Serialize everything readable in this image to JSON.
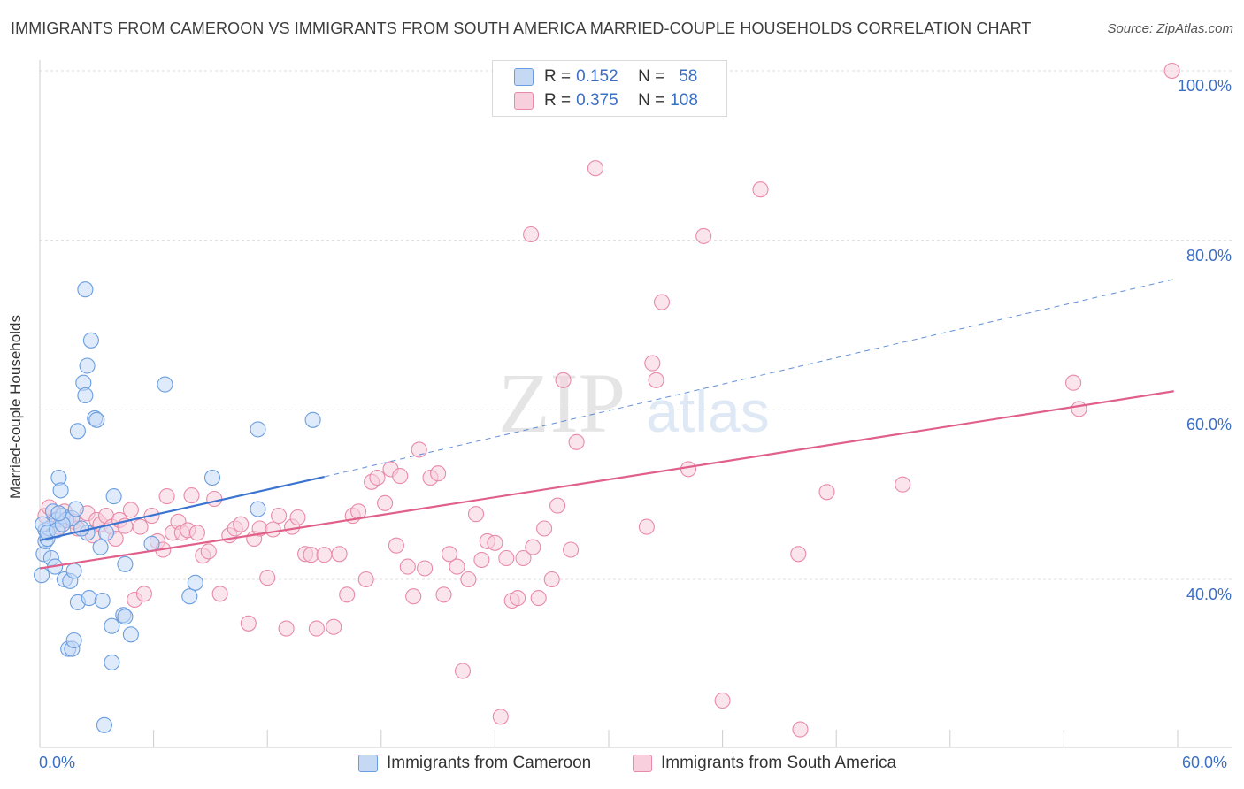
{
  "header": {
    "title": "IMMIGRANTS FROM CAMEROON VS IMMIGRANTS FROM SOUTH AMERICA MARRIED-COUPLE HOUSEHOLDS CORRELATION CHART",
    "source": "Source: ZipAtlas.com"
  },
  "watermark": {
    "zip": "ZIP",
    "atlas": "atlas"
  },
  "legend": {
    "r_label": "R =",
    "n_label": "N =",
    "rows": [
      {
        "r": "0.152",
        "n": "58"
      },
      {
        "r": "0.375",
        "n": "108"
      }
    ]
  },
  "colors": {
    "series1_fill": "#c5d9f5",
    "series1_stroke": "#6a9ee0",
    "series1_line": "#3b74d0",
    "series2_fill": "#f8cfdc",
    "series2_stroke": "#e88aa8",
    "series2_line": "#e0608a",
    "tick_label": "#3b6fc4",
    "grid": "#dddddd"
  },
  "chart_data": {
    "type": "scatter",
    "title": "IMMIGRANTS FROM CAMEROON VS IMMIGRANTS FROM SOUTH AMERICA MARRIED-COUPLE HOUSEHOLDS CORRELATION CHART",
    "xlabel": "",
    "ylabel": "Married-couple Households",
    "xlim": [
      0,
      60
    ],
    "ylim": [
      20,
      102
    ],
    "x_tick_labels": [
      "0.0%",
      "60.0%"
    ],
    "y_ticks": [
      40,
      60,
      80,
      100
    ],
    "y_tick_labels": [
      "40.0%",
      "60.0%",
      "80.0%",
      "100.0%"
    ],
    "grid": "horizontal dashed",
    "legend_position": "top-center",
    "series": [
      {
        "name": "Immigrants from Cameroon",
        "r": 0.152,
        "n": 58,
        "trend": {
          "x": [
            0,
            15.0
          ],
          "y": [
            44.6,
            52.1
          ],
          "dashed_extension": {
            "x": [
              15.0,
              59.8
            ],
            "y": [
              52.1,
              75.4
            ]
          }
        },
        "points": [
          [
            0.1,
            40.5
          ],
          [
            0.2,
            43.0
          ],
          [
            0.3,
            44.5
          ],
          [
            0.3,
            45.8
          ],
          [
            0.4,
            44.8
          ],
          [
            0.5,
            46.0
          ],
          [
            0.6,
            42.5
          ],
          [
            0.7,
            48.0
          ],
          [
            0.8,
            41.5
          ],
          [
            0.9,
            47.0
          ],
          [
            1.0,
            52.0
          ],
          [
            1.1,
            50.5
          ],
          [
            1.2,
            47.5
          ],
          [
            1.3,
            40.0
          ],
          [
            1.4,
            47.0
          ],
          [
            1.5,
            31.8
          ],
          [
            1.6,
            39.8
          ],
          [
            1.7,
            31.8
          ],
          [
            1.7,
            47.2
          ],
          [
            1.8,
            41.0
          ],
          [
            1.8,
            32.8
          ],
          [
            1.9,
            48.3
          ],
          [
            2.0,
            57.5
          ],
          [
            2.0,
            37.3
          ],
          [
            2.3,
            63.2
          ],
          [
            2.4,
            74.2
          ],
          [
            2.4,
            61.7
          ],
          [
            2.5,
            65.2
          ],
          [
            2.5,
            45.5
          ],
          [
            2.6,
            37.8
          ],
          [
            2.7,
            68.2
          ],
          [
            2.9,
            59.0
          ],
          [
            3.0,
            58.8
          ],
          [
            3.2,
            43.8
          ],
          [
            3.3,
            37.5
          ],
          [
            3.4,
            22.8
          ],
          [
            3.5,
            45.5
          ],
          [
            3.8,
            34.5
          ],
          [
            3.8,
            30.2
          ],
          [
            3.9,
            49.8
          ],
          [
            4.5,
            41.8
          ],
          [
            4.4,
            35.8
          ],
          [
            4.5,
            35.6
          ],
          [
            4.8,
            33.5
          ],
          [
            5.9,
            44.2
          ],
          [
            6.6,
            63.0
          ],
          [
            7.9,
            38.0
          ],
          [
            8.2,
            39.6
          ],
          [
            9.1,
            52.0
          ],
          [
            11.5,
            57.7
          ],
          [
            11.5,
            48.3
          ],
          [
            14.4,
            58.8
          ],
          [
            0.15,
            46.5
          ],
          [
            0.4,
            45.5
          ],
          [
            0.9,
            45.8
          ],
          [
            1.2,
            46.5
          ],
          [
            2.2,
            46.0
          ],
          [
            1.0,
            47.8
          ]
        ]
      },
      {
        "name": "Immigrants from South America",
        "r": 0.375,
        "n": 108,
        "trend": {
          "x": [
            0,
            59.8
          ],
          "y": [
            41.3,
            62.2
          ]
        },
        "points": [
          [
            0.3,
            47.5
          ],
          [
            0.5,
            48.5
          ],
          [
            0.8,
            47.0
          ],
          [
            1.0,
            46.2
          ],
          [
            1.3,
            48.0
          ],
          [
            1.5,
            47.2
          ],
          [
            1.8,
            46.8
          ],
          [
            2.0,
            46.0
          ],
          [
            2.5,
            47.8
          ],
          [
            2.8,
            45.2
          ],
          [
            3.0,
            47.0
          ],
          [
            3.2,
            46.5
          ],
          [
            3.5,
            47.5
          ],
          [
            3.8,
            46.2
          ],
          [
            4.0,
            44.8
          ],
          [
            4.2,
            47.0
          ],
          [
            4.5,
            46.3
          ],
          [
            4.8,
            48.2
          ],
          [
            5.0,
            37.6
          ],
          [
            5.3,
            46.2
          ],
          [
            5.5,
            38.3
          ],
          [
            5.9,
            47.5
          ],
          [
            6.2,
            44.5
          ],
          [
            6.5,
            43.5
          ],
          [
            6.7,
            49.8
          ],
          [
            7.0,
            45.5
          ],
          [
            7.3,
            46.8
          ],
          [
            7.5,
            45.5
          ],
          [
            7.8,
            45.8
          ],
          [
            8.0,
            49.9
          ],
          [
            8.3,
            45.5
          ],
          [
            8.6,
            42.8
          ],
          [
            8.9,
            43.3
          ],
          [
            9.2,
            49.5
          ],
          [
            9.5,
            38.3
          ],
          [
            10.0,
            45.2
          ],
          [
            10.3,
            46.0
          ],
          [
            10.6,
            46.5
          ],
          [
            11.0,
            34.8
          ],
          [
            11.3,
            44.8
          ],
          [
            11.6,
            46.0
          ],
          [
            12.0,
            40.2
          ],
          [
            12.3,
            45.9
          ],
          [
            12.6,
            47.5
          ],
          [
            13.0,
            34.2
          ],
          [
            13.3,
            46.2
          ],
          [
            13.6,
            47.3
          ],
          [
            14.0,
            43.0
          ],
          [
            14.3,
            42.9
          ],
          [
            14.6,
            34.2
          ],
          [
            15.0,
            42.9
          ],
          [
            15.5,
            34.4
          ],
          [
            15.8,
            43.0
          ],
          [
            16.2,
            38.2
          ],
          [
            16.5,
            47.5
          ],
          [
            16.8,
            48.0
          ],
          [
            17.2,
            40.0
          ],
          [
            17.5,
            51.5
          ],
          [
            17.8,
            52.0
          ],
          [
            18.2,
            49.0
          ],
          [
            18.5,
            53.0
          ],
          [
            18.8,
            44.0
          ],
          [
            19.0,
            52.2
          ],
          [
            19.4,
            41.5
          ],
          [
            19.7,
            38.0
          ],
          [
            20.0,
            55.3
          ],
          [
            20.3,
            41.3
          ],
          [
            20.6,
            52.0
          ],
          [
            21.0,
            52.5
          ],
          [
            21.3,
            38.2
          ],
          [
            21.6,
            43.0
          ],
          [
            22.0,
            41.5
          ],
          [
            22.3,
            29.2
          ],
          [
            22.6,
            40.0
          ],
          [
            23.0,
            47.7
          ],
          [
            23.3,
            42.3
          ],
          [
            23.6,
            44.5
          ],
          [
            24.0,
            44.3
          ],
          [
            24.3,
            23.8
          ],
          [
            24.6,
            42.5
          ],
          [
            24.9,
            37.5
          ],
          [
            25.2,
            37.8
          ],
          [
            25.5,
            42.5
          ],
          [
            25.9,
            80.7
          ],
          [
            26.0,
            43.8
          ],
          [
            26.3,
            37.8
          ],
          [
            26.6,
            46.0
          ],
          [
            27.0,
            40.0
          ],
          [
            27.3,
            48.7
          ],
          [
            27.6,
            63.5
          ],
          [
            28.0,
            43.5
          ],
          [
            28.3,
            56.2
          ],
          [
            29.3,
            88.5
          ],
          [
            32.0,
            46.2
          ],
          [
            32.3,
            65.5
          ],
          [
            32.5,
            63.5
          ],
          [
            32.8,
            72.7
          ],
          [
            34.2,
            53.0
          ],
          [
            35.0,
            80.5
          ],
          [
            36.0,
            25.7
          ],
          [
            38.0,
            86.0
          ],
          [
            40.0,
            43.0
          ],
          [
            40.1,
            22.3
          ],
          [
            41.5,
            50.3
          ],
          [
            45.5,
            51.2
          ],
          [
            54.5,
            63.2
          ],
          [
            54.8,
            60.1
          ],
          [
            59.7,
            100.0
          ]
        ]
      }
    ]
  }
}
